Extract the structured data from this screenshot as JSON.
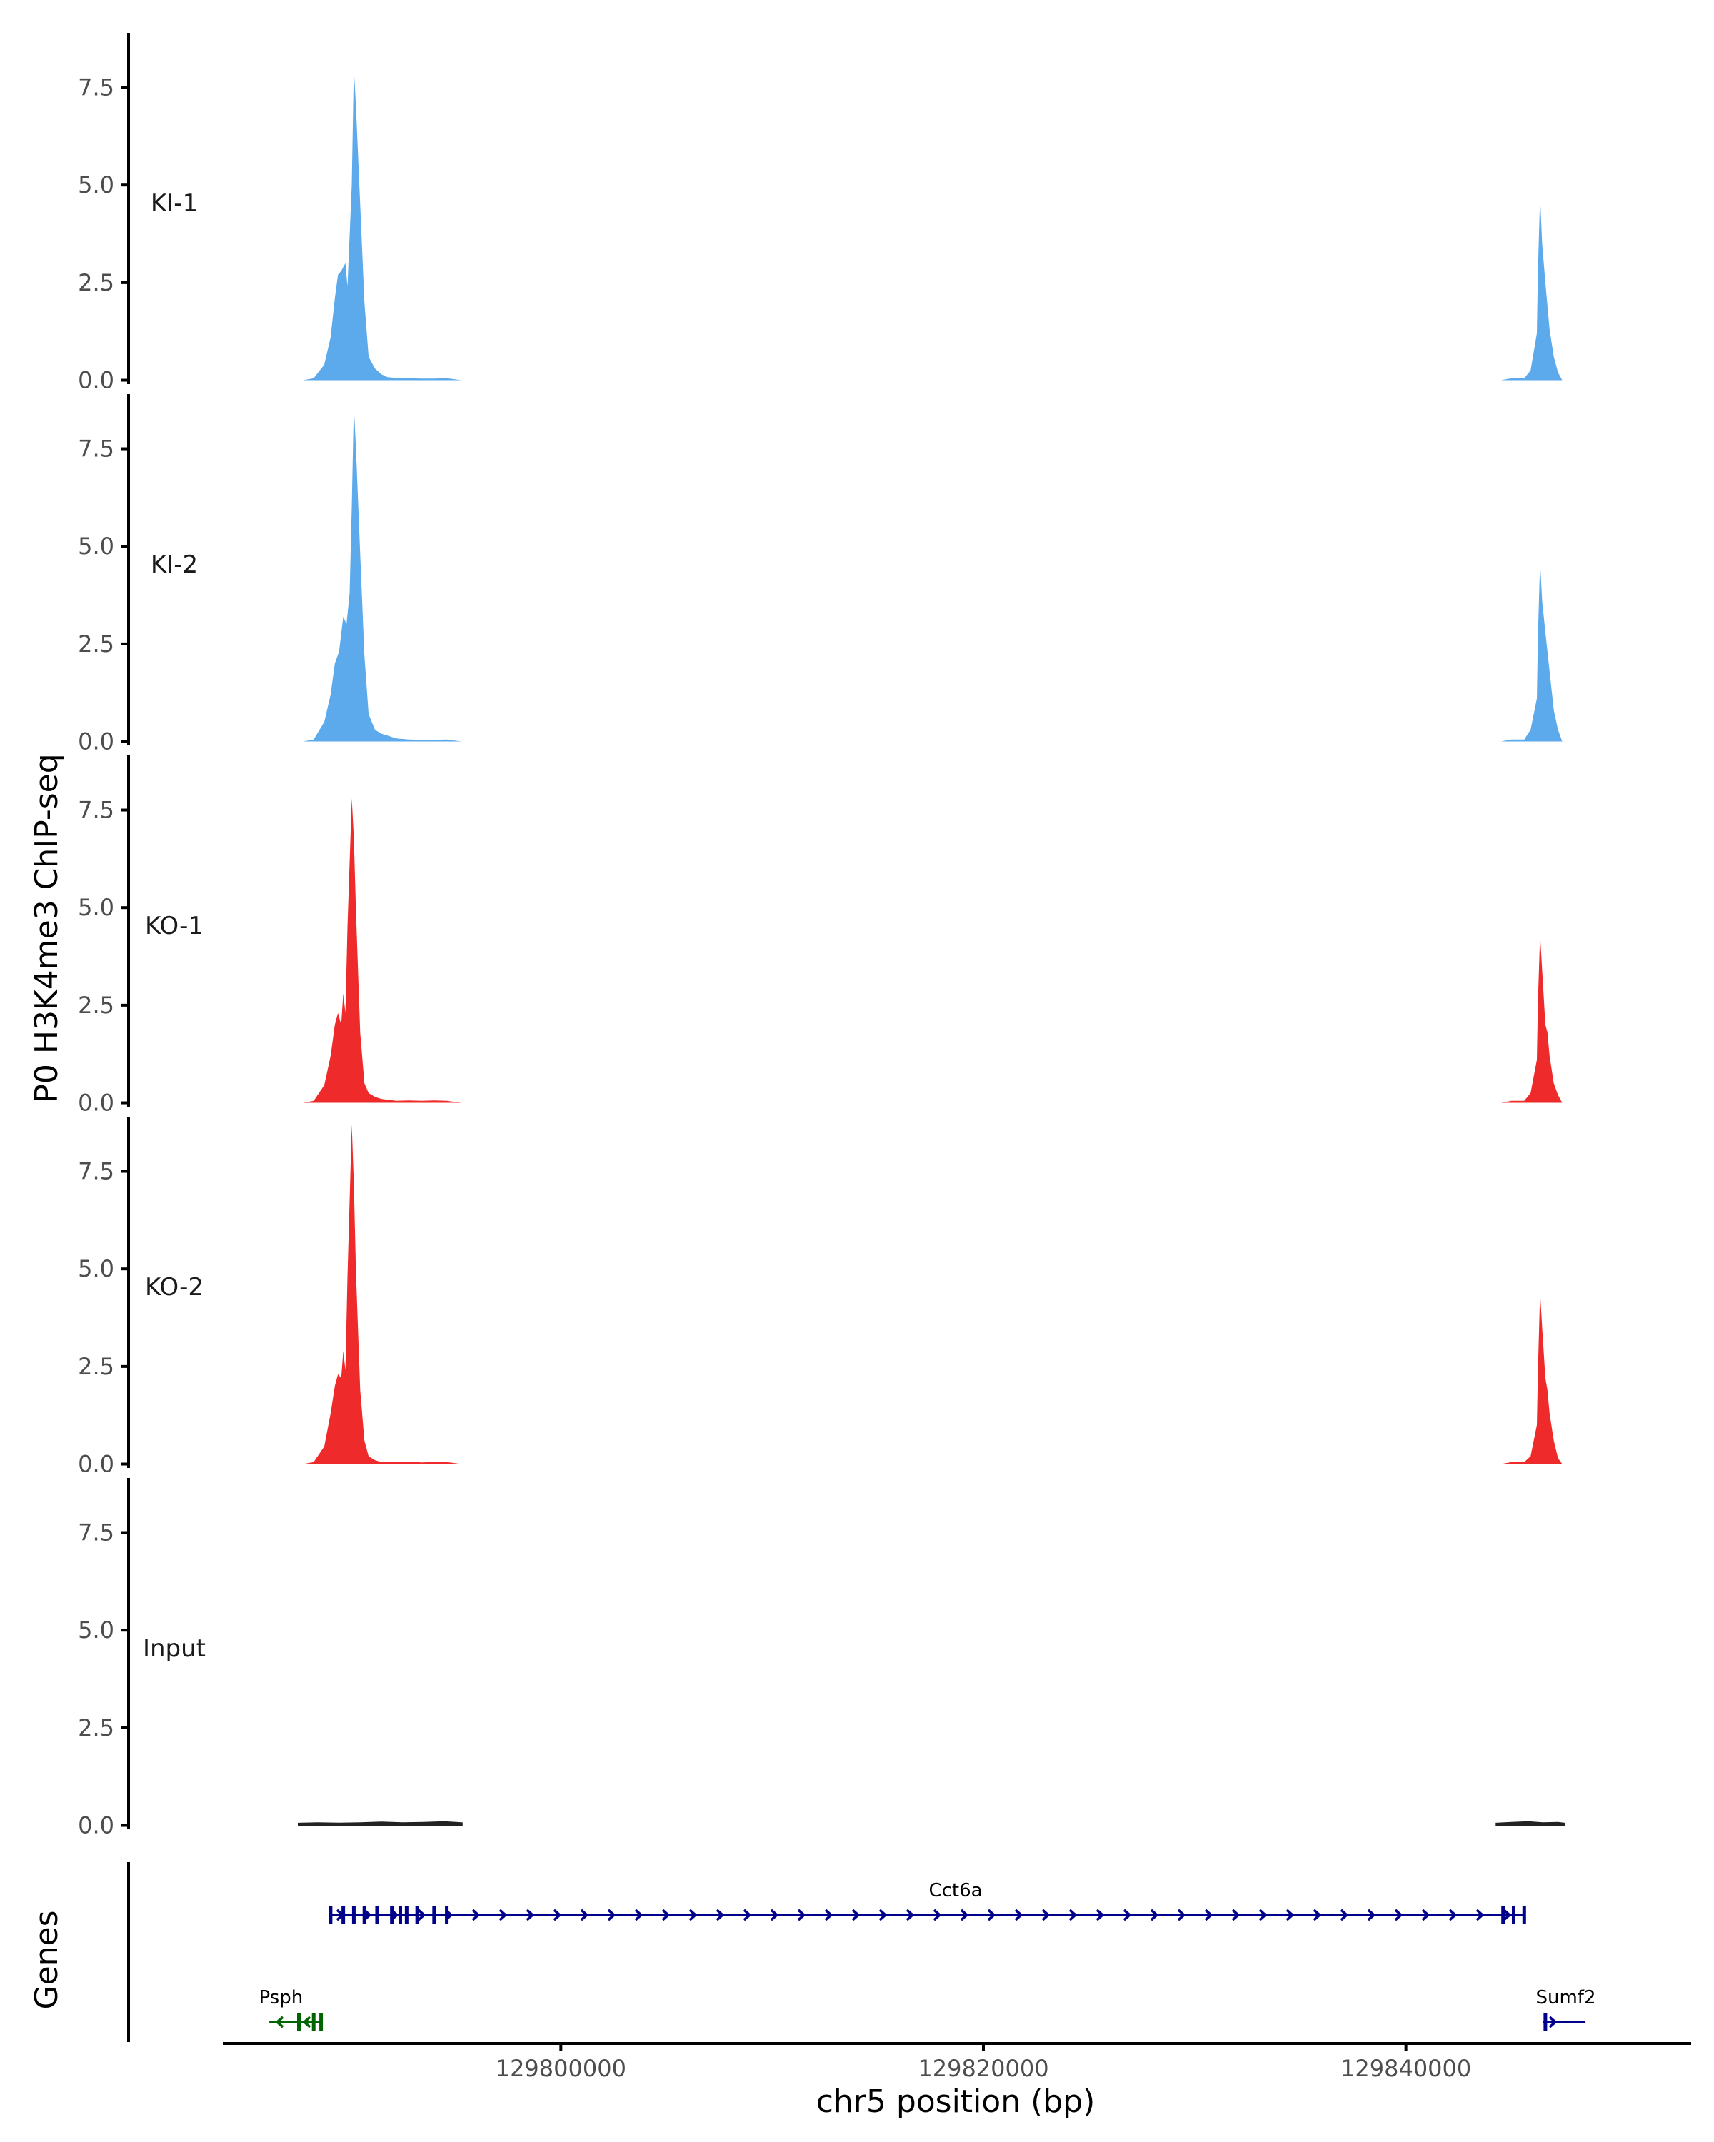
{
  "chart_data": {
    "type": "area",
    "ylabel": "P0 H3K4me3 ChIP-seq",
    "xlabel": "chr5 position (bp)",
    "gene_track_label": "Genes",
    "xlim": [
      129784000,
      129853500
    ],
    "ylim": [
      -0.1,
      8.9
    ],
    "y_ticks": [
      0.0,
      2.5,
      5.0,
      7.5
    ],
    "y_tick_labels": [
      "0.0",
      "2.5",
      "5.0",
      "7.5"
    ],
    "x_ticks": [
      129800000,
      129820000,
      129840000
    ],
    "x_tick_labels": [
      "129800000",
      "129820000",
      "129840000"
    ],
    "colors": {
      "KI": "#5ca9eb",
      "KO": "#ef2a2a",
      "Input": "#222222",
      "gene_plus": "#00008b",
      "gene_minus": "#006400"
    },
    "tracks": [
      {
        "name": "KI-1",
        "color": "#5ca9eb",
        "x": [
          129787800,
          129788300,
          129788800,
          129789100,
          129789300,
          129789450,
          129789600,
          129789800,
          129789900,
          129790100,
          129790200,
          129790300,
          129790500,
          129790700,
          129790900,
          129791200,
          129791500,
          129791800,
          129792200,
          129792800,
          129793400,
          129794000,
          129794600,
          129795300,
          129844500,
          129845000,
          129845600,
          129845900,
          129846200,
          129846250,
          129846350,
          129846450,
          129846600,
          129846800,
          129847000,
          129847200,
          129847400
        ],
        "values": [
          0.0,
          0.05,
          0.4,
          1.1,
          2.1,
          2.7,
          2.8,
          3.0,
          2.4,
          5.0,
          8.0,
          7.0,
          4.5,
          2.0,
          0.6,
          0.3,
          0.15,
          0.08,
          0.06,
          0.05,
          0.04,
          0.04,
          0.05,
          0.0,
          0.0,
          0.05,
          0.05,
          0.25,
          1.2,
          2.8,
          4.7,
          3.5,
          2.5,
          1.3,
          0.6,
          0.2,
          0.0
        ]
      },
      {
        "name": "KI-2",
        "color": "#5ca9eb",
        "x": [
          129787800,
          129788300,
          129788800,
          129789100,
          129789300,
          129789500,
          129789700,
          129789850,
          129790000,
          129790100,
          129790200,
          129790300,
          129790500,
          129790700,
          129790900,
          129791200,
          129791500,
          129791800,
          129792200,
          129792800,
          129793400,
          129794000,
          129794600,
          129795300,
          129844500,
          129845000,
          129845600,
          129845900,
          129846200,
          129846250,
          129846350,
          129846450,
          129846600,
          129846800,
          129847000,
          129847200,
          129847400
        ],
        "values": [
          0.0,
          0.05,
          0.5,
          1.2,
          2.0,
          2.3,
          3.2,
          3.0,
          3.8,
          6.0,
          8.6,
          7.5,
          4.8,
          2.2,
          0.7,
          0.3,
          0.2,
          0.15,
          0.08,
          0.05,
          0.04,
          0.04,
          0.05,
          0.0,
          0.0,
          0.05,
          0.05,
          0.3,
          1.1,
          2.7,
          4.6,
          3.6,
          2.8,
          1.8,
          0.8,
          0.3,
          0.0
        ]
      },
      {
        "name": "KO-1",
        "color": "#ef2a2a",
        "x": [
          129787800,
          129788300,
          129788800,
          129789100,
          129789300,
          129789450,
          129789600,
          129789700,
          129789800,
          129789900,
          129790100,
          129790200,
          129790300,
          129790500,
          129790700,
          129790900,
          129791200,
          129791500,
          129791800,
          129792200,
          129792800,
          129793400,
          129794000,
          129794600,
          129795300,
          129844500,
          129845000,
          129845600,
          129845900,
          129846200,
          129846250,
          129846350,
          129846450,
          129846600,
          129846700,
          129846800,
          129847000,
          129847200,
          129847400
        ],
        "values": [
          0.0,
          0.05,
          0.45,
          1.2,
          2.0,
          2.3,
          2.0,
          2.8,
          2.3,
          4.5,
          7.8,
          6.8,
          4.9,
          1.8,
          0.5,
          0.25,
          0.15,
          0.1,
          0.08,
          0.05,
          0.06,
          0.05,
          0.06,
          0.05,
          0.0,
          0.0,
          0.05,
          0.05,
          0.25,
          1.1,
          2.6,
          4.3,
          3.4,
          2.0,
          1.8,
          1.2,
          0.5,
          0.2,
          0.0
        ]
      },
      {
        "name": "KO-2",
        "color": "#ef2a2a",
        "x": [
          129787800,
          129788300,
          129788800,
          129789100,
          129789300,
          129789450,
          129789600,
          129789700,
          129789800,
          129789900,
          129790100,
          129790200,
          129790300,
          129790500,
          129790700,
          129790900,
          129791200,
          129791500,
          129791800,
          129792200,
          129792800,
          129793400,
          129794000,
          129794600,
          129795300,
          129844500,
          129845000,
          129845600,
          129845900,
          129846200,
          129846250,
          129846350,
          129846450,
          129846600,
          129846700,
          129846800,
          129847000,
          129847200,
          129847400
        ],
        "values": [
          0.0,
          0.05,
          0.45,
          1.3,
          2.0,
          2.3,
          2.2,
          2.9,
          2.4,
          4.8,
          8.7,
          7.2,
          4.9,
          1.9,
          0.6,
          0.2,
          0.1,
          0.05,
          0.06,
          0.05,
          0.06,
          0.04,
          0.05,
          0.05,
          0.0,
          0.0,
          0.05,
          0.05,
          0.2,
          1.0,
          2.4,
          4.4,
          3.5,
          2.2,
          1.9,
          1.3,
          0.6,
          0.15,
          0.0
        ]
      },
      {
        "name": "Input",
        "color": "#222222",
        "x": [
          129787600,
          129788500,
          129789500,
          129790500,
          129791500,
          129792500,
          129793500,
          129794500,
          129795300,
          129844300,
          129845000,
          129845800,
          129846500,
          129847200,
          129847500
        ],
        "values": [
          0.04,
          0.05,
          0.04,
          0.05,
          0.07,
          0.05,
          0.06,
          0.08,
          0.05,
          0.04,
          0.06,
          0.08,
          0.05,
          0.06,
          0.04
        ]
      }
    ],
    "genes": [
      {
        "name": "Cct6a",
        "start": 129789100,
        "end": 129845600,
        "strand": "+",
        "row": 1,
        "color": "#00008b",
        "exons": [
          129789100,
          129789700,
          129790200,
          129790700,
          129791300,
          129792000,
          129792400,
          129792700,
          129793200,
          129794000,
          129794600,
          129844600,
          129845100,
          129845600
        ]
      },
      {
        "name": "Psph",
        "start": 129786200,
        "end": 129788650,
        "strand": "-",
        "row": 2,
        "color": "#006400",
        "exons": [
          129787600,
          129788300,
          129788650
        ]
      },
      {
        "name": "Sumf2",
        "start": 129846500,
        "end": 129848500,
        "strand": "+",
        "row": 2,
        "color": "#00008b",
        "exons": [
          129846600
        ]
      }
    ]
  }
}
